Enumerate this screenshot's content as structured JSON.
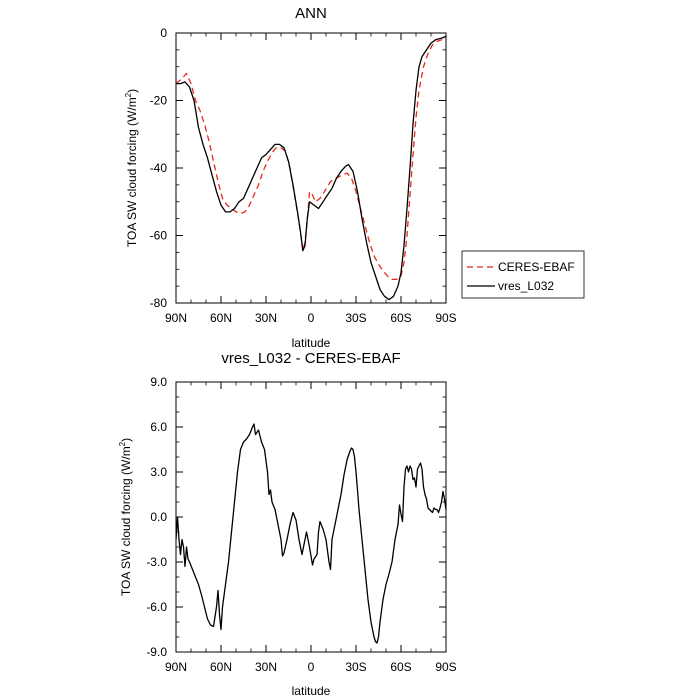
{
  "chart_data": [
    {
      "type": "line",
      "title": "ANN",
      "xlabel": "latitude",
      "ylabel": "TOA SW cloud forcing (W/m",
      "ylabel_sup": "2",
      "ylabel_end": ")",
      "xlim": [
        90,
        -90
      ],
      "ylim": [
        -80,
        0
      ],
      "xticks": [
        {
          "value": 90,
          "label": "90N"
        },
        {
          "value": 60,
          "label": "60N"
        },
        {
          "value": 30,
          "label": "30N"
        },
        {
          "value": 0,
          "label": "0"
        },
        {
          "value": -30,
          "label": "30S"
        },
        {
          "value": -60,
          "label": "60S"
        },
        {
          "value": -90,
          "label": "90S"
        }
      ],
      "yticks": [
        {
          "value": 0,
          "label": "0"
        },
        {
          "value": -20,
          "label": "-20"
        },
        {
          "value": -40,
          "label": "-40"
        },
        {
          "value": -60,
          "label": "-60"
        },
        {
          "value": -80,
          "label": "-80"
        }
      ],
      "legend_placement": "right",
      "series": [
        {
          "name": "CERES-EBAF",
          "color": "#e8281e",
          "dash": "dashed",
          "points": [
            [
              90,
              -15
            ],
            [
              86,
              -13.5
            ],
            [
              83,
              -12
            ],
            [
              80,
              -15
            ],
            [
              77,
              -20
            ],
            [
              74,
              -23
            ],
            [
              71,
              -27
            ],
            [
              68,
              -32
            ],
            [
              65,
              -38
            ],
            [
              62,
              -44
            ],
            [
              59,
              -49
            ],
            [
              56,
              -51
            ],
            [
              53,
              -52
            ],
            [
              50,
              -53
            ],
            [
              47,
              -53.5
            ],
            [
              44,
              -53
            ],
            [
              41,
              -51
            ],
            [
              38,
              -48
            ],
            [
              35,
              -45
            ],
            [
              32,
              -41
            ],
            [
              29,
              -38
            ],
            [
              26,
              -35.5
            ],
            [
              23,
              -34
            ],
            [
              20,
              -34
            ],
            [
              17,
              -35
            ],
            [
              14,
              -40
            ],
            [
              11,
              -48
            ],
            [
              8,
              -56
            ],
            [
              6,
              -62
            ],
            [
              5,
              -64.5
            ],
            [
              4,
              -62
            ],
            [
              2,
              -53
            ],
            [
              1,
              -47
            ],
            [
              -1,
              -48
            ],
            [
              -3,
              -50
            ],
            [
              -6,
              -49
            ],
            [
              -9,
              -47
            ],
            [
              -13,
              -44
            ],
            [
              -17,
              -43
            ],
            [
              -21,
              -42
            ],
            [
              -24,
              -41.5
            ],
            [
              -27,
              -43
            ],
            [
              -30,
              -47
            ],
            [
              -33,
              -52
            ],
            [
              -36,
              -57
            ],
            [
              -39,
              -62
            ],
            [
              -42,
              -66
            ],
            [
              -45,
              -68.5
            ],
            [
              -48,
              -70.5
            ],
            [
              -51,
              -72
            ],
            [
              -54,
              -73
            ],
            [
              -57,
              -73
            ],
            [
              -60,
              -72
            ],
            [
              -62,
              -68
            ],
            [
              -64,
              -60
            ],
            [
              -66,
              -48
            ],
            [
              -68,
              -36
            ],
            [
              -70,
              -25
            ],
            [
              -72,
              -17
            ],
            [
              -75,
              -10
            ],
            [
              -78,
              -6
            ],
            [
              -81,
              -3.5
            ],
            [
              -84,
              -2.5
            ],
            [
              -87,
              -2
            ],
            [
              -90,
              -2
            ]
          ]
        },
        {
          "name": "vres_L032",
          "color": "#000000",
          "dash": "solid",
          "points": [
            [
              90,
              -15
            ],
            [
              87,
              -15
            ],
            [
              84,
              -14.5
            ],
            [
              81,
              -16
            ],
            [
              78,
              -20
            ],
            [
              75,
              -28
            ],
            [
              72,
              -33
            ],
            [
              69,
              -37
            ],
            [
              66,
              -42
            ],
            [
              63,
              -47
            ],
            [
              60,
              -51
            ],
            [
              57,
              -53
            ],
            [
              54,
              -53
            ],
            [
              51,
              -52
            ],
            [
              48,
              -50
            ],
            [
              45,
              -49
            ],
            [
              42,
              -46
            ],
            [
              39,
              -43
            ],
            [
              36,
              -40
            ],
            [
              33,
              -37
            ],
            [
              30,
              -36
            ],
            [
              27,
              -34.5
            ],
            [
              24,
              -33
            ],
            [
              21,
              -33
            ],
            [
              18,
              -34
            ],
            [
              15,
              -38
            ],
            [
              12,
              -45
            ],
            [
              9,
              -53
            ],
            [
              7,
              -59
            ],
            [
              5.5,
              -64.5
            ],
            [
              4,
              -63
            ],
            [
              2.5,
              -55
            ],
            [
              1,
              -50
            ],
            [
              -2,
              -51
            ],
            [
              -5,
              -52
            ],
            [
              -8,
              -50
            ],
            [
              -11,
              -48
            ],
            [
              -14,
              -46
            ],
            [
              -17,
              -43
            ],
            [
              -20,
              -41
            ],
            [
              -23,
              -39.5
            ],
            [
              -25,
              -39
            ],
            [
              -28,
              -41
            ],
            [
              -31,
              -47
            ],
            [
              -34,
              -55
            ],
            [
              -37,
              -62
            ],
            [
              -40,
              -68
            ],
            [
              -43,
              -72
            ],
            [
              -46,
              -76
            ],
            [
              -49,
              -78
            ],
            [
              -52,
              -79
            ],
            [
              -55,
              -78
            ],
            [
              -58,
              -75
            ],
            [
              -60,
              -71
            ],
            [
              -62,
              -63
            ],
            [
              -64,
              -52
            ],
            [
              -66,
              -40
            ],
            [
              -68,
              -27
            ],
            [
              -70,
              -17
            ],
            [
              -72,
              -10
            ],
            [
              -74,
              -7
            ],
            [
              -77,
              -5
            ],
            [
              -80,
              -3
            ],
            [
              -83,
              -2
            ],
            [
              -87,
              -1.5
            ],
            [
              -90,
              -1
            ]
          ]
        }
      ]
    },
    {
      "type": "line",
      "title": "vres_L032 - CERES-EBAF",
      "xlabel": "latitude",
      "ylabel": "TOA SW cloud forcing (W/m",
      "ylabel_sup": "2",
      "ylabel_end": ")",
      "xlim": [
        90,
        -90
      ],
      "ylim": [
        -9,
        9
      ],
      "xticks": [
        {
          "value": 90,
          "label": "90N"
        },
        {
          "value": 60,
          "label": "60N"
        },
        {
          "value": 30,
          "label": "30N"
        },
        {
          "value": 0,
          "label": "0"
        },
        {
          "value": -30,
          "label": "30S"
        },
        {
          "value": -60,
          "label": "60S"
        },
        {
          "value": -90,
          "label": "90S"
        }
      ],
      "yticks": [
        {
          "value": 9,
          "label": "9.0"
        },
        {
          "value": 6,
          "label": "6.0"
        },
        {
          "value": 3,
          "label": "3.0"
        },
        {
          "value": 0,
          "label": "0.0"
        },
        {
          "value": -3,
          "label": "-3.0"
        },
        {
          "value": -6,
          "label": "-6.0"
        },
        {
          "value": -9,
          "label": "-9.0"
        }
      ],
      "series": [
        {
          "color": "#000000",
          "dash": "solid",
          "points": [
            [
              90,
              -1.5
            ],
            [
              89,
              0
            ],
            [
              88,
              -1.5
            ],
            [
              87,
              -2.5
            ],
            [
              86,
              -1.5
            ],
            [
              85,
              -2
            ],
            [
              84,
              -3.3
            ],
            [
              83,
              -2
            ],
            [
              82,
              -2.8
            ],
            [
              81,
              -3
            ],
            [
              79,
              -3.5
            ],
            [
              77,
              -4
            ],
            [
              75,
              -4.5
            ],
            [
              73,
              -5.2
            ],
            [
              71,
              -6
            ],
            [
              69,
              -6.8
            ],
            [
              67,
              -7.2
            ],
            [
              65,
              -7.3
            ],
            [
              63,
              -6
            ],
            [
              62,
              -4.9
            ],
            [
              61,
              -6.5
            ],
            [
              60,
              -7.5
            ],
            [
              59,
              -6
            ],
            [
              57,
              -4.5
            ],
            [
              55,
              -3
            ],
            [
              53,
              -1
            ],
            [
              51,
              1
            ],
            [
              49,
              3
            ],
            [
              47,
              4.5
            ],
            [
              45,
              5
            ],
            [
              43,
              5.2
            ],
            [
              41,
              5.5
            ],
            [
              39,
              6
            ],
            [
              38,
              6.2
            ],
            [
              37,
              5.5
            ],
            [
              35,
              5.8
            ],
            [
              33,
              5
            ],
            [
              31,
              4.5
            ],
            [
              29,
              3
            ],
            [
              28,
              1.5
            ],
            [
              27,
              1.8
            ],
            [
              26,
              1
            ],
            [
              24,
              0.5
            ],
            [
              22,
              -0.5
            ],
            [
              20,
              -1.5
            ],
            [
              19,
              -2.6
            ],
            [
              18,
              -2.4
            ],
            [
              16,
              -1.5
            ],
            [
              14,
              -0.5
            ],
            [
              12,
              0.3
            ],
            [
              10,
              -0.2
            ],
            [
              8,
              -1.5
            ],
            [
              6,
              -2.5
            ],
            [
              5,
              -2
            ],
            [
              4,
              -1.5
            ],
            [
              3,
              -1
            ],
            [
              1,
              -2
            ],
            [
              -1,
              -3.2
            ],
            [
              -2,
              -2.8
            ],
            [
              -4,
              -2.5
            ],
            [
              -5,
              -1
            ],
            [
              -6,
              -0.3
            ],
            [
              -8,
              -0.8
            ],
            [
              -10,
              -1.5
            ],
            [
              -12,
              -3
            ],
            [
              -13,
              -3.5
            ],
            [
              -14,
              -1.5
            ],
            [
              -16,
              -0.5
            ],
            [
              -18,
              0.5
            ],
            [
              -20,
              1.5
            ],
            [
              -22,
              2.8
            ],
            [
              -24,
              3.8
            ],
            [
              -26,
              4.4
            ],
            [
              -27,
              4.6
            ],
            [
              -28,
              4.5
            ],
            [
              -29,
              4
            ],
            [
              -30,
              3
            ],
            [
              -31,
              1.8
            ],
            [
              -32,
              0.5
            ],
            [
              -34,
              -1.5
            ],
            [
              -36,
              -3.5
            ],
            [
              -38,
              -5.5
            ],
            [
              -40,
              -7
            ],
            [
              -42,
              -8
            ],
            [
              -43,
              -8.3
            ],
            [
              -44,
              -8.4
            ],
            [
              -45,
              -8
            ],
            [
              -46,
              -7
            ],
            [
              -48,
              -5.5
            ],
            [
              -50,
              -4.5
            ],
            [
              -52,
              -3.8
            ],
            [
              -54,
              -3
            ],
            [
              -56,
              -1.5
            ],
            [
              -58,
              -0.5
            ],
            [
              -59,
              0.8
            ],
            [
              -60,
              0.2
            ],
            [
              -61,
              -0.3
            ],
            [
              -62,
              2
            ],
            [
              -63,
              3.2
            ],
            [
              -64,
              3.4
            ],
            [
              -65,
              3
            ],
            [
              -66,
              3.4
            ],
            [
              -67,
              3.2
            ],
            [
              -68,
              2.5
            ],
            [
              -69,
              2.6
            ],
            [
              -70,
              2
            ],
            [
              -71,
              3.2
            ],
            [
              -72,
              3.4
            ],
            [
              -73,
              3.6
            ],
            [
              -74,
              3.2
            ],
            [
              -75,
              2
            ],
            [
              -76,
              1.5
            ],
            [
              -77,
              1.2
            ],
            [
              -78,
              0.6
            ],
            [
              -79,
              0.5
            ],
            [
              -80,
              0.4
            ],
            [
              -81,
              0.3
            ],
            [
              -82,
              0.6
            ],
            [
              -83,
              0.5
            ],
            [
              -84,
              0.5
            ],
            [
              -85,
              0.3
            ],
            [
              -86,
              0.6
            ],
            [
              -87,
              1
            ],
            [
              -88,
              1.7
            ],
            [
              -89,
              1.2
            ],
            [
              -90,
              0.5
            ]
          ]
        }
      ]
    }
  ]
}
